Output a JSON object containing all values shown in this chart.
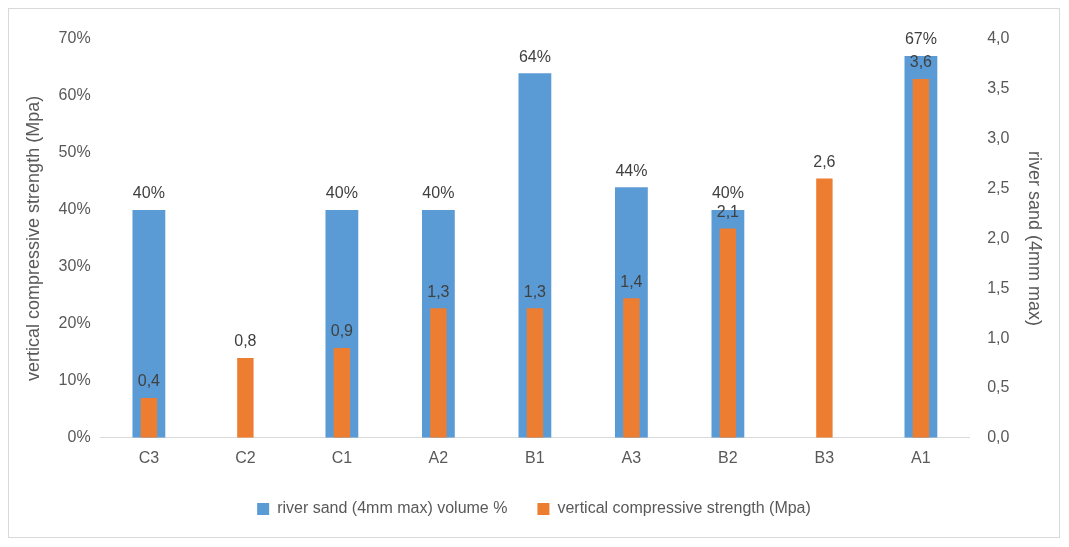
{
  "chart_data": {
    "type": "bar",
    "categories": [
      "C3",
      "C2",
      "C1",
      "A2",
      "B1",
      "A3",
      "B2",
      "B3",
      "A1"
    ],
    "ylabel": "vertical compressive strength (Mpa)",
    "y2label": "river sand (4mm max)",
    "ylim": [
      0,
      70
    ],
    "yticks": [
      {
        "value": 0,
        "label": "0%"
      },
      {
        "value": 10,
        "label": "10%"
      },
      {
        "value": 20,
        "label": "20%"
      },
      {
        "value": 30,
        "label": "30%"
      },
      {
        "value": 40,
        "label": "40%"
      },
      {
        "value": 50,
        "label": "50%"
      },
      {
        "value": 60,
        "label": "60%"
      },
      {
        "value": 70,
        "label": "70%"
      }
    ],
    "y2lim": [
      0,
      4
    ],
    "y2ticks": [
      {
        "value": 0,
        "label": "0,0"
      },
      {
        "value": 0.5,
        "label": "0,5"
      },
      {
        "value": 1,
        "label": "1,0"
      },
      {
        "value": 1.5,
        "label": "1,5"
      },
      {
        "value": 2,
        "label": "2,0"
      },
      {
        "value": 2.5,
        "label": "2,5"
      },
      {
        "value": 3,
        "label": "3,0"
      },
      {
        "value": 3.5,
        "label": "3,5"
      },
      {
        "value": 4,
        "label": "4,0"
      }
    ],
    "series": [
      {
        "name": "river sand (4mm max) volume %",
        "color": "#5b9bd5",
        "values": [
          40,
          null,
          40,
          40,
          64,
          44,
          40,
          null,
          67
        ],
        "value_labels": [
          "40%",
          null,
          "40%",
          "40%",
          "64%",
          "44%",
          "40%",
          null,
          "67%"
        ]
      },
      {
        "name": "vertical compressive strength (Mpa)",
        "color": "#ed7d31",
        "axis": "y2",
        "values": [
          0.4,
          0.8,
          0.9,
          1.3,
          1.3,
          1.4,
          2.1,
          2.6,
          3.6
        ],
        "value_labels": [
          "0,4",
          "0,8",
          "0,9",
          "1,3",
          "1,3",
          "1,4",
          "2,1",
          "2,6",
          "3,6"
        ]
      }
    ],
    "legend": "bottom",
    "grid": false
  }
}
